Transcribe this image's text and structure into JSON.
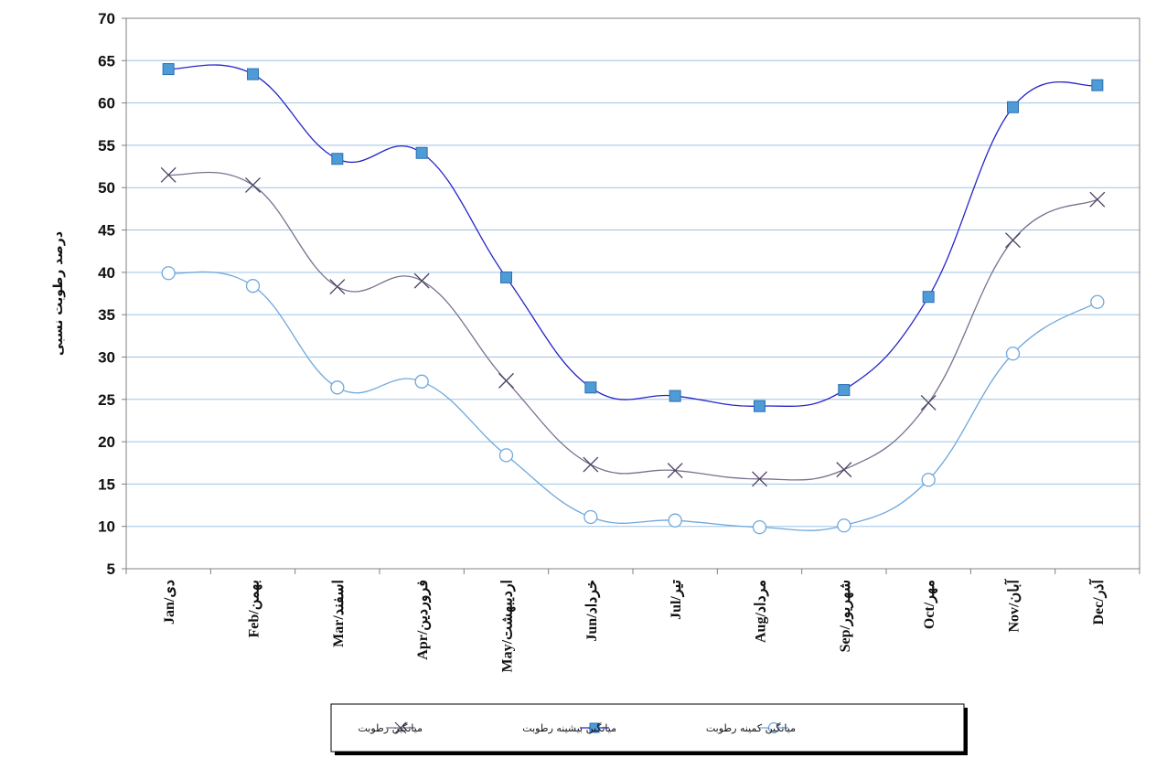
{
  "chart_data": {
    "type": "line",
    "title": "",
    "xlabel": "",
    "ylabel": "درصد رطوبت نسبی",
    "categories": [
      "Jan/دی",
      "Feb/بهمن",
      "Mar/اسفند",
      "Apr/فروردین",
      "May/اردیبهشت",
      "Jun/خرداد",
      "Jul/تیر",
      "Aug/مرداد",
      "Sep/شهریور",
      "Oct/مهر",
      "Nov/آبان",
      "Dec/آذر"
    ],
    "ylim": [
      5,
      70
    ],
    "yticks": [
      5,
      10,
      15,
      20,
      25,
      30,
      35,
      40,
      45,
      50,
      55,
      60,
      65,
      70
    ],
    "grid": true,
    "legend_position": "bottom",
    "series": [
      {
        "name": "میانگین رطوبت",
        "marker": "x",
        "color": "#7a6f8e",
        "values": [
          51.5,
          50.3,
          38.3,
          39.0,
          27.2,
          17.3,
          16.6,
          15.6,
          16.7,
          24.6,
          43.8,
          48.6
        ]
      },
      {
        "name": "میانگین بیشینه رطوبت",
        "marker": "square",
        "color": "#2525c8",
        "marker_fill": "#4f9bd6",
        "values": [
          64.0,
          63.4,
          53.4,
          54.1,
          39.4,
          26.4,
          25.4,
          24.2,
          26.1,
          37.1,
          59.5,
          62.1
        ]
      },
      {
        "name": "میانگین کمینه رطوبت",
        "marker": "circle",
        "color": "#6fa8dc",
        "values": [
          39.9,
          38.4,
          26.4,
          27.1,
          18.4,
          11.1,
          10.7,
          9.9,
          10.1,
          15.5,
          30.4,
          36.5
        ]
      }
    ],
    "colors": {
      "grid": "#9dc3e6",
      "axis": "#808080",
      "plot_border": "#808080"
    }
  }
}
